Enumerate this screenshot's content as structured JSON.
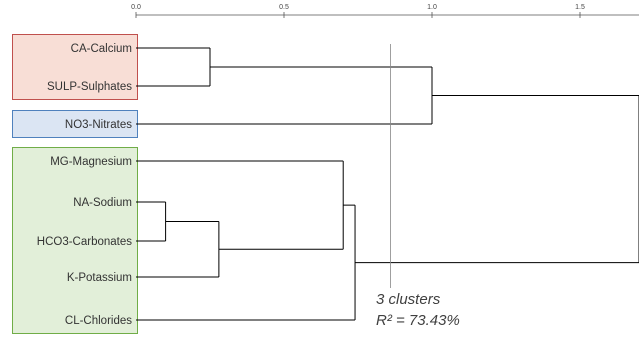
{
  "chart_data": {
    "type": "dendrogram",
    "x_axis": {
      "ticks": [
        0.0,
        0.5,
        1.0,
        1.5
      ],
      "tick_labels": [
        "0.0",
        "0.5",
        "1.0",
        "1.5"
      ],
      "range": [
        0.0,
        1.5
      ]
    },
    "leaves": [
      "CA-Calcium",
      "SULP-Sulphates",
      "NO3-Nitrates",
      "MG-Magnesium",
      "NA-Sodium",
      "HCO3-Carbonates",
      "K-Potassium",
      "CL-Chlorides"
    ],
    "merges": [
      {
        "id": "m1",
        "children": [
          "NA-Sodium",
          "HCO3-Carbonates"
        ],
        "height": 0.1
      },
      {
        "id": "m2",
        "children": [
          "m1",
          "K-Potassium"
        ],
        "height": 0.28
      },
      {
        "id": "m3",
        "children": [
          "CA-Calcium",
          "SULP-Sulphates"
        ],
        "height": 0.25
      },
      {
        "id": "m4",
        "children": [
          "MG-Magnesium",
          "m2"
        ],
        "height": 0.7
      },
      {
        "id": "m5",
        "children": [
          "m4",
          "CL-Chlorides"
        ],
        "height": 0.74
      },
      {
        "id": "m6",
        "children": [
          "m3",
          "NO3-Nitrates"
        ],
        "height": 1.0
      },
      {
        "id": "m7",
        "children": [
          "m6",
          "m5"
        ],
        "height": 1.7
      }
    ],
    "cut_line": 0.86,
    "clusters": [
      {
        "members": [
          "CA-Calcium",
          "SULP-Sulphates"
        ],
        "color": "#c0504d",
        "fill": "#f8ded6"
      },
      {
        "members": [
          "NO3-Nitrates"
        ],
        "color": "#4f81bd",
        "fill": "#dbe5f3"
      },
      {
        "members": [
          "MG-Magnesium",
          "NA-Sodium",
          "HCO3-Carbonates",
          "K-Potassium",
          "CL-Chlorides"
        ],
        "color": "#70ad47",
        "fill": "#e2efd9"
      }
    ],
    "annotation": {
      "line1": "3 clusters",
      "line2": "R² = 73.43%"
    }
  }
}
